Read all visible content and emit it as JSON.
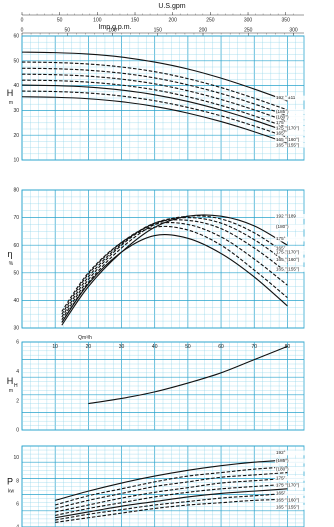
{
  "colors": {
    "grid": "#29a3cc",
    "grid_minor": "#8fd4ea",
    "curve": "#111111",
    "panel_bg": "#ffffff",
    "label_box": "#d6ccc2"
  },
  "header": {
    "usgpm_label": "U.S.gpm",
    "impgpm_label": "Imp.g.p.m.",
    "usgpm_ticks": [
      "0",
      "50",
      "100",
      "150",
      "200",
      "250",
      "300",
      "350"
    ],
    "impgpm_ticks": [
      "0",
      "50",
      "100",
      "150",
      "200",
      "250",
      "300"
    ]
  },
  "chart_data": [
    {
      "type": "line",
      "panel": "head",
      "ylabel": "H",
      "yunit": "m",
      "xlim": [
        0,
        85
      ],
      "ylim": [
        10,
        60
      ],
      "yticks": [
        "60",
        "50",
        "40",
        "30",
        "20",
        "10"
      ],
      "x": [
        0,
        10,
        20,
        30,
        40,
        50,
        60,
        70,
        80
      ],
      "series": [
        {
          "name": "192 ° ±11",
          "style": "solid",
          "values": [
            53.5,
            53.3,
            52.7,
            51.5,
            49.5,
            46.7,
            43.0,
            38.6,
            33.8
          ]
        },
        {
          "name": "(185°)",
          "style": "dashed",
          "values": [
            49.5,
            49.3,
            48.7,
            47.5,
            45.6,
            42.8,
            39.2,
            34.9,
            30.2
          ]
        },
        {
          "name": "(180°)",
          "style": "dashed",
          "values": [
            47.0,
            46.8,
            46.2,
            45.0,
            43.1,
            40.3,
            36.8,
            32.6,
            27.8
          ]
        },
        {
          "name": "175°",
          "style": "dashed",
          "values": [
            44.6,
            44.4,
            43.8,
            42.6,
            40.7,
            37.9,
            34.4,
            30.2,
            25.5
          ]
        },
        {
          "name": "175 °(170°)",
          "style": "dashed",
          "values": [
            42.2,
            42.0,
            41.4,
            40.2,
            38.3,
            35.5,
            32.0,
            27.8,
            23.0
          ]
        },
        {
          "name": "165°",
          "style": "solid",
          "values": [
            40.2,
            40.0,
            39.4,
            38.2,
            36.3,
            33.6,
            30.1,
            26.0,
            21.4
          ]
        },
        {
          "name": "165 °(160°)",
          "style": "dashed",
          "values": [
            37.8,
            37.6,
            37.0,
            35.8,
            33.9,
            31.2,
            27.8,
            23.7,
            19.2
          ]
        },
        {
          "name": "165 °(155°)",
          "style": "solid",
          "values": [
            35.5,
            35.3,
            34.7,
            33.5,
            31.6,
            28.9,
            25.5,
            21.4,
            16.8
          ]
        }
      ],
      "labels": [
        "192 ° ±11",
        "(185°)",
        "(180°)",
        "175°",
        "175 °(170°)",
        "165°",
        "165 °(160°)",
        "165 °(155°)"
      ]
    },
    {
      "type": "line",
      "panel": "efficiency",
      "ylabel": "η",
      "yunit": "%",
      "xlim": [
        0,
        85
      ],
      "ylim": [
        30,
        80
      ],
      "yticks": [
        "80",
        "70",
        "60",
        "50",
        "40",
        "30"
      ],
      "x": [
        12,
        20,
        30,
        40,
        50,
        60,
        70,
        80
      ],
      "series": [
        {
          "name": "192 ° (189)",
          "style": "solid",
          "values": [
            31,
            45,
            57.5,
            66.5,
            70.5,
            70.5,
            67,
            60
          ]
        },
        {
          "name": "(180°)",
          "style": "dashed",
          "values": [
            32,
            46.5,
            59,
            67.5,
            70.5,
            69.5,
            64.5,
            56.5
          ]
        },
        {
          "name": "175°",
          "style": "dashed",
          "values": [
            33,
            47.5,
            60,
            68,
            70,
            68,
            62,
            53.5
          ]
        },
        {
          "name": "175 °(170°)",
          "style": "dashed",
          "values": [
            34,
            48.5,
            60.5,
            68,
            69,
            66,
            59,
            50
          ]
        },
        {
          "name": "165 °(160°)",
          "style": "dashed",
          "values": [
            35,
            49.5,
            61,
            67.5,
            67.5,
            63,
            55,
            45.5
          ]
        },
        {
          "name": "165°",
          "style": "solid",
          "values": [
            32,
            46,
            57.5,
            63.5,
            62.5,
            57,
            48.5,
            38
          ]
        },
        {
          "name": "165 °(155°)",
          "style": "dashed",
          "values": [
            36,
            50,
            61,
            66.5,
            65.5,
            60,
            51,
            41
          ]
        }
      ],
      "labels": [
        "192 °(189",
        "(180°)",
        "165°",
        "175°",
        "175 °(170°)",
        "165 °(160°)",
        "165 °(155°)"
      ]
    },
    {
      "type": "line",
      "panel": "npsh",
      "ylabel": "H",
      "ylabel_sub": "H",
      "yunit": "m",
      "xlabel": "Qm³/h",
      "xticks": [
        "10",
        "20",
        "30",
        "40",
        "50",
        "60",
        "70",
        "80"
      ],
      "xlim": [
        0,
        85
      ],
      "ylim": [
        0,
        6
      ],
      "yticks": [
        "6",
        "4",
        "2",
        "0"
      ],
      "x": [
        20,
        30,
        40,
        50,
        60,
        70,
        80
      ],
      "series": [
        {
          "name": "NPSH",
          "style": "solid",
          "values": [
            1.8,
            2.15,
            2.6,
            3.2,
            3.9,
            4.8,
            5.7
          ]
        }
      ]
    },
    {
      "type": "line",
      "panel": "power",
      "ylabel": "P",
      "yunit": "kw",
      "xlim": [
        0,
        85
      ],
      "ylim": [
        4,
        11
      ],
      "yticks": [
        "10",
        "8",
        "6",
        "4"
      ],
      "x": [
        10,
        20,
        30,
        40,
        50,
        60,
        70,
        80
      ],
      "series": [
        {
          "name": "192°",
          "style": "solid",
          "values": [
            6.3,
            7.1,
            7.8,
            8.4,
            8.9,
            9.3,
            9.6,
            9.8
          ]
        },
        {
          "name": "(185°)",
          "style": "dashed",
          "values": [
            5.9,
            6.7,
            7.3,
            7.9,
            8.4,
            8.7,
            9.0,
            9.2
          ]
        },
        {
          "name": "(180°)",
          "style": "dashed",
          "values": [
            5.6,
            6.3,
            6.9,
            7.5,
            7.9,
            8.3,
            8.5,
            8.7
          ]
        },
        {
          "name": "175°",
          "style": "dashed",
          "values": [
            5.3,
            5.9,
            6.5,
            7.0,
            7.4,
            7.8,
            8.0,
            8.2
          ]
        },
        {
          "name": "175 °(170°)",
          "style": "dashed",
          "values": [
            5.0,
            5.6,
            6.1,
            6.6,
            7.0,
            7.3,
            7.5,
            7.7
          ]
        },
        {
          "name": "165°",
          "style": "solid",
          "values": [
            4.8,
            5.3,
            5.8,
            6.2,
            6.6,
            6.9,
            7.1,
            7.3
          ]
        },
        {
          "name": "165 °(160°)",
          "style": "dashed",
          "values": [
            4.6,
            5.1,
            5.5,
            5.9,
            6.2,
            6.5,
            6.7,
            6.9
          ]
        },
        {
          "name": "165 °(155°)",
          "style": "dashed",
          "values": [
            4.4,
            4.8,
            5.2,
            5.6,
            5.9,
            6.1,
            6.3,
            6.4
          ]
        }
      ],
      "labels": [
        "192°",
        "(185°)",
        "(180°)",
        "175°",
        "175 °(170°)",
        "165°",
        "165 °(160°)",
        "165 °(155°)"
      ]
    }
  ]
}
